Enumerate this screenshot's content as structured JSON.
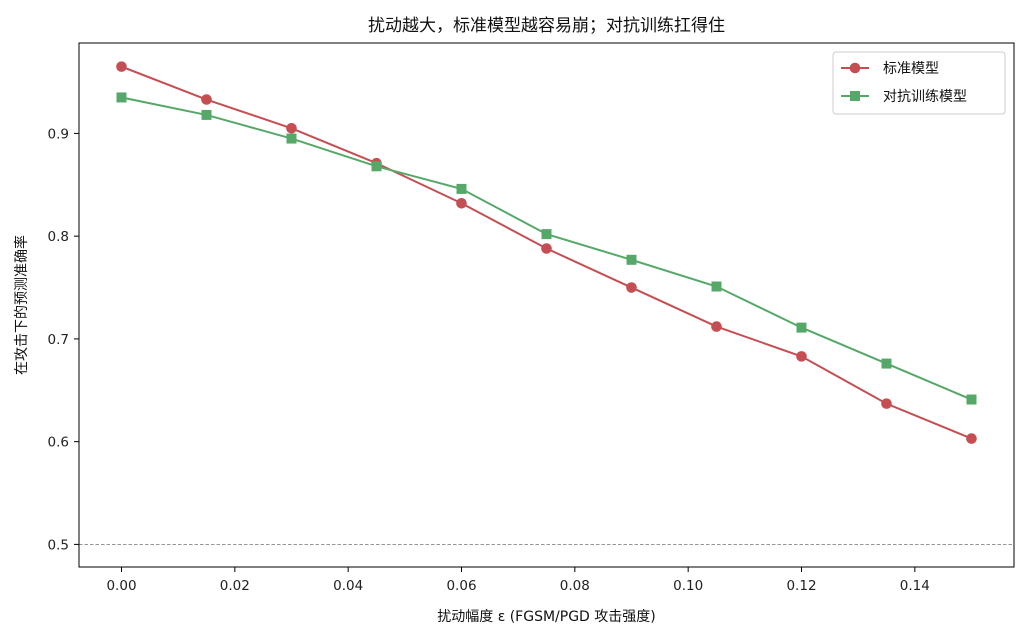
{
  "chart_data": {
    "type": "line",
    "title": "扰动越大，标准模型越容易崩；对抗训练扛得住",
    "xlabel": "扰动幅度 ε (FGSM/PGD 攻击强度)",
    "ylabel": "在攻击下的预测准确率",
    "x": [
      0.0,
      0.015,
      0.03,
      0.045,
      0.06,
      0.075,
      0.09,
      0.105,
      0.12,
      0.135,
      0.15
    ],
    "xlim": [
      -0.0075,
      0.1575
    ],
    "ylim": [
      0.478,
      0.988
    ],
    "xticks": [
      0.0,
      0.02,
      0.04,
      0.06,
      0.08,
      0.1,
      0.12,
      0.14
    ],
    "xtick_labels": [
      "0.00",
      "0.02",
      "0.04",
      "0.06",
      "0.08",
      "0.10",
      "0.12",
      "0.14"
    ],
    "yticks": [
      0.5,
      0.6,
      0.7,
      0.8,
      0.9
    ],
    "ytick_labels": [
      "0.5",
      "0.6",
      "0.7",
      "0.8",
      "0.9"
    ],
    "reference_line": {
      "y": 0.5,
      "style": "dashed",
      "color": "#888888"
    },
    "grid": false,
    "legend_position": "top-right",
    "series": [
      {
        "name": "标准模型",
        "color": "#c44e52",
        "marker": "circle",
        "values": [
          0.965,
          0.933,
          0.905,
          0.871,
          0.832,
          0.788,
          0.75,
          0.712,
          0.683,
          0.637,
          0.603
        ]
      },
      {
        "name": "对抗训练模型",
        "color": "#55a868",
        "marker": "square",
        "values": [
          0.935,
          0.918,
          0.895,
          0.868,
          0.846,
          0.802,
          0.777,
          0.751,
          0.711,
          0.676,
          0.641
        ]
      }
    ]
  }
}
